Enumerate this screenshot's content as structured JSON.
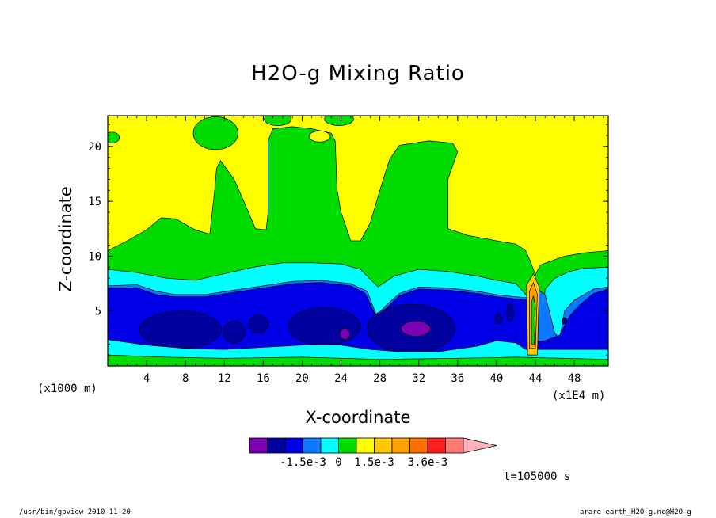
{
  "title": "H2O-g Mixing Ratio",
  "footer": {
    "left": "/usr/bin/gpview  2010-11-20",
    "right": "arare-earth_H2O-g.nc@H2O-g"
  },
  "time_label": "t=105000 s",
  "chart_data": {
    "type": "contour",
    "title": "H2O-g Mixing Ratio",
    "xlabel": "X-coordinate",
    "ylabel": "Z-coordinate",
    "x_unit_left": "(x1000 m)",
    "x_unit_right": "(x1E4 m)",
    "xlim": [
      0,
      51.5
    ],
    "ylim": [
      0,
      22.8
    ],
    "x_ticks": [
      4,
      8,
      12,
      16,
      20,
      24,
      28,
      32,
      36,
      40,
      44,
      48
    ],
    "y_ticks": [
      5,
      10,
      15,
      20
    ],
    "colorbar": {
      "labels": [
        {
          "text": "-1.5e-3",
          "at": 3
        },
        {
          "text": "0",
          "at": 5
        },
        {
          "text": "1.5e-3",
          "at": 7
        },
        {
          "text": "3.6e-3",
          "at": 10
        }
      ],
      "colors": [
        "#7c00b4",
        "#0000a0",
        "#0000e6",
        "#0a78ff",
        "#00ffff",
        "#00dc00",
        "#ffff00",
        "#ffc800",
        "#ffa000",
        "#ff6e00",
        "#ff1e1e",
        "#ff7878",
        "#ffb4be"
      ]
    },
    "layers": [
      {
        "name": "yellow",
        "color": "#ffff00",
        "top": [
          [
            0,
            22.8
          ],
          [
            51.5,
            22.8
          ]
        ]
      },
      {
        "name": "green",
        "color": "#00dc00",
        "top": [
          [
            0,
            10.5
          ],
          [
            2,
            11.4
          ],
          [
            4,
            12.4
          ],
          [
            5.5,
            13.5
          ],
          [
            7,
            13.4
          ],
          [
            9,
            12.4
          ],
          [
            10.5,
            12
          ],
          [
            11,
            16
          ],
          [
            11.2,
            18
          ],
          [
            11.6,
            18.7
          ],
          [
            13,
            17
          ],
          [
            14,
            15
          ],
          [
            15.2,
            12.5
          ],
          [
            16.3,
            12.4
          ],
          [
            16.5,
            14
          ],
          [
            16.5,
            20.5
          ],
          [
            17,
            21.6
          ],
          [
            19,
            21.8
          ],
          [
            21,
            21.6
          ],
          [
            23,
            21.2
          ],
          [
            23.4,
            20.5
          ],
          [
            23.6,
            16
          ],
          [
            24,
            14
          ],
          [
            25,
            11.4
          ],
          [
            26,
            11.4
          ],
          [
            27,
            13
          ],
          [
            28,
            16
          ],
          [
            29,
            18.8
          ],
          [
            30,
            20.1
          ],
          [
            33,
            20.5
          ],
          [
            35.5,
            20.3
          ],
          [
            36,
            19.5
          ],
          [
            35,
            17
          ],
          [
            35,
            12.5
          ],
          [
            37,
            11.9
          ],
          [
            40,
            11.4
          ],
          [
            42,
            11.1
          ],
          [
            43,
            10.5
          ],
          [
            43.5,
            9.5
          ],
          [
            44,
            8.3
          ],
          [
            44.5,
            9.2
          ],
          [
            47,
            10
          ],
          [
            49,
            10.3
          ],
          [
            51.5,
            10.5
          ]
        ]
      },
      {
        "name": "cyan",
        "color": "#00ffff",
        "top": [
          [
            0,
            8.8
          ],
          [
            3,
            8.5
          ],
          [
            6,
            8
          ],
          [
            9,
            7.8
          ],
          [
            12,
            8.4
          ],
          [
            15,
            9
          ],
          [
            18,
            9.4
          ],
          [
            21,
            9.4
          ],
          [
            24,
            9.3
          ],
          [
            26,
            8.8
          ],
          [
            27.8,
            7.2
          ],
          [
            29.5,
            8.2
          ],
          [
            32,
            8.8
          ],
          [
            35,
            8.6
          ],
          [
            38,
            8.2
          ],
          [
            40,
            7.8
          ],
          [
            42,
            7.5
          ],
          [
            43.5,
            6
          ],
          [
            44,
            2
          ],
          [
            44.5,
            1
          ],
          [
            45,
            7
          ],
          [
            46,
            8
          ],
          [
            47.5,
            8.6
          ],
          [
            49,
            8.9
          ],
          [
            51.5,
            9
          ]
        ]
      },
      {
        "name": "lightblue",
        "color": "#0a78ff",
        "top": [
          [
            0,
            7.3
          ],
          [
            3,
            7.4
          ],
          [
            5,
            6.8
          ],
          [
            7,
            6.5
          ],
          [
            10,
            6.5
          ],
          [
            13,
            6.9
          ],
          [
            16,
            7.3
          ],
          [
            19,
            7.7
          ],
          [
            22,
            7.8
          ],
          [
            25,
            7.5
          ],
          [
            26.7,
            6.8
          ],
          [
            27.7,
            4.5
          ],
          [
            28.5,
            5.4
          ],
          [
            30,
            6.6
          ],
          [
            32,
            7.2
          ],
          [
            35,
            7.1
          ],
          [
            38,
            6.8
          ],
          [
            40,
            6.5
          ],
          [
            42,
            6.3
          ],
          [
            43.3,
            6.2
          ],
          [
            43.5,
            3
          ],
          [
            43.6,
            1.8
          ],
          [
            44,
            1.5
          ],
          [
            44.2,
            7
          ],
          [
            45,
            6.5
          ],
          [
            46,
            3
          ],
          [
            46.5,
            2.5
          ],
          [
            47,
            5
          ],
          [
            48,
            6
          ],
          [
            50,
            7
          ],
          [
            51.5,
            7.2
          ]
        ]
      },
      {
        "name": "blue",
        "color": "#0000e6",
        "top": [
          [
            0,
            7.1
          ],
          [
            3,
            7.1
          ],
          [
            5,
            6.5
          ],
          [
            7,
            6.3
          ],
          [
            10,
            6.3
          ],
          [
            13,
            6.7
          ],
          [
            16,
            7.1
          ],
          [
            19,
            7.5
          ],
          [
            22,
            7.6
          ],
          [
            25,
            7.3
          ],
          [
            26.5,
            6.6
          ],
          [
            27.6,
            4.5
          ],
          [
            28.6,
            5.2
          ],
          [
            30,
            6.4
          ],
          [
            32,
            7
          ],
          [
            35,
            6.9
          ],
          [
            38,
            6.6
          ],
          [
            40,
            6.3
          ],
          [
            42,
            6.1
          ],
          [
            43.2,
            6
          ],
          [
            43.4,
            2.8
          ],
          [
            43.8,
            2.2
          ],
          [
            45,
            2.3
          ],
          [
            46.5,
            2.8
          ],
          [
            47.5,
            4.5
          ],
          [
            48.5,
            5.5
          ],
          [
            50,
            6.6
          ],
          [
            51.5,
            7
          ]
        ]
      }
    ],
    "bottom_bands": [
      {
        "color": "#00ffff",
        "top": [
          [
            0,
            2.4
          ],
          [
            4,
            1.9
          ],
          [
            8,
            1.6
          ],
          [
            12,
            1.5
          ],
          [
            16,
            1.7
          ],
          [
            20,
            1.9
          ],
          [
            24,
            1.9
          ],
          [
            27,
            1.5
          ],
          [
            30,
            1.3
          ],
          [
            34,
            1.3
          ],
          [
            38,
            1.8
          ],
          [
            40,
            2.3
          ],
          [
            42,
            2.1
          ],
          [
            43,
            1.5
          ],
          [
            51.5,
            1.5
          ]
        ]
      },
      {
        "color": "#00dc00",
        "top": [
          [
            0,
            1
          ],
          [
            6,
            0.8
          ],
          [
            12,
            0.7
          ],
          [
            20,
            0.8
          ],
          [
            28,
            0.6
          ],
          [
            36,
            0.7
          ],
          [
            42,
            0.8
          ],
          [
            51.5,
            0.6
          ]
        ]
      }
    ],
    "blobs": [
      {
        "color": "#0000a0",
        "cx": 7.5,
        "cy": 3.3,
        "rx": 4.2,
        "ry": 1.7
      },
      {
        "color": "#0000a0",
        "cx": 13,
        "cy": 3.1,
        "rx": 1.1,
        "ry": 1
      },
      {
        "color": "#0000a0",
        "cx": 15.5,
        "cy": 3.8,
        "rx": 1,
        "ry": 0.8
      },
      {
        "color": "#0000a0",
        "cx": 22.3,
        "cy": 3.6,
        "rx": 3.7,
        "ry": 1.7
      },
      {
        "color": "#0000a0",
        "cx": 31.2,
        "cy": 3.4,
        "rx": 4.5,
        "ry": 2.2
      },
      {
        "color": "#0000a0",
        "cx": 40.2,
        "cy": 4.3,
        "rx": 0.35,
        "ry": 0.45
      },
      {
        "color": "#0000a0",
        "cx": 41.4,
        "cy": 4.9,
        "rx": 0.35,
        "ry": 0.8
      },
      {
        "color": "#0000a0",
        "cx": 47,
        "cy": 4.1,
        "rx": 0.25,
        "ry": 0.3
      },
      {
        "color": "#7c00b4",
        "cx": 31.7,
        "cy": 3.4,
        "rx": 1.5,
        "ry": 0.7
      },
      {
        "color": "#7c00b4",
        "cx": 24.4,
        "cy": 2.9,
        "rx": 0.5,
        "ry": 0.5
      }
    ],
    "holes": [
      {
        "color": "#ffff00",
        "cx": 21.8,
        "cy": 20.9,
        "rx": 1.1,
        "ry": 0.5
      },
      {
        "color": "#00dc00",
        "cx": 11.1,
        "cy": 21.2,
        "rx": 2.3,
        "ry": 1.5
      },
      {
        "color": "#00dc00",
        "cx": 0.4,
        "cy": 20.8,
        "rx": 0.8,
        "ry": 0.5
      },
      {
        "color": "#00dc00",
        "cx": 23.8,
        "cy": 22.5,
        "rx": 1.5,
        "ry": 0.6
      },
      {
        "color": "#00dc00",
        "cx": 17.5,
        "cy": 22.5,
        "rx": 1.4,
        "ry": 0.6
      }
    ],
    "plume": [
      {
        "color": "#ffc800",
        "pts": [
          [
            43.2,
            1
          ],
          [
            43.1,
            7.4
          ],
          [
            43.8,
            8.4
          ],
          [
            44.4,
            7.2
          ],
          [
            44.2,
            1
          ]
        ]
      },
      {
        "color": "#ffa000",
        "pts": [
          [
            43.4,
            1.6
          ],
          [
            43.4,
            6.8
          ],
          [
            43.8,
            7.6
          ],
          [
            44.2,
            6.5
          ],
          [
            44,
            1.6
          ]
        ]
      },
      {
        "color": "#00dc00",
        "pts": [
          [
            43.6,
            2
          ],
          [
            43.6,
            5.8
          ],
          [
            43.8,
            6.4
          ],
          [
            44,
            5.5
          ],
          [
            43.9,
            2
          ]
        ]
      }
    ]
  }
}
